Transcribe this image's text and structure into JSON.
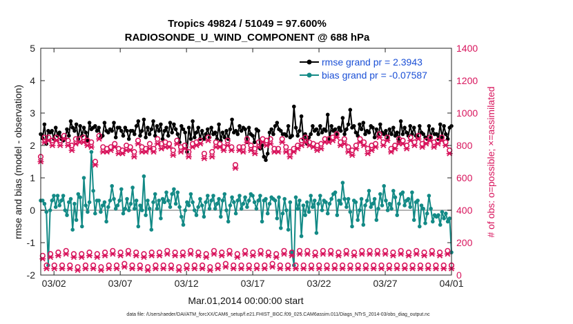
{
  "chart_data": {
    "type": "line",
    "title": "Tropics 49824 / 51049 = 97.600%",
    "subtitle": "RADIOSONDE_U_WIND_COMPONENT @ 688 hPa",
    "xlabel": "Mar.01,2014 00:00:00 start",
    "ylabel": "rmse and bias (model - observation)",
    "ylabel_right": "# of obs: o=possible; ×=assimilated",
    "xlim": [
      0,
      31
    ],
    "ylim": [
      -2,
      5
    ],
    "ylim_right": [
      0,
      1400
    ],
    "x_ticks": [
      {
        "x": 1,
        "label": "03/02"
      },
      {
        "x": 6,
        "label": "03/07"
      },
      {
        "x": 11,
        "label": "03/12"
      },
      {
        "x": 16,
        "label": "03/17"
      },
      {
        "x": 21,
        "label": "03/22"
      },
      {
        "x": 26,
        "label": "03/27"
      },
      {
        "x": 31,
        "label": "04/01"
      }
    ],
    "y_ticks": [
      "-2",
      "-1",
      "0",
      "1",
      "2",
      "3",
      "4",
      "5"
    ],
    "y_ticks_right": [
      "0",
      "200",
      "400",
      "600",
      "800",
      "1000",
      "1200",
      "1400"
    ],
    "legend": [
      {
        "name": "rmse grand pr = 2.3943",
        "color": "#000000"
      },
      {
        "name": "bias grand pr = -0.07587",
        "color": "#138a86"
      }
    ],
    "footnote": "data file: /Users/raeder/DAI/ATM_forcXX/CAM6_setup/f.e21.FHIST_BGC.f09_025.CAM6assim.011/Diags_NTrS_2014-03/obs_diag_output.nc",
    "series": [
      {
        "name": "rmse",
        "axis": "left",
        "color": "#000000",
        "values": [
          2.35,
          2.22,
          2.65,
          2.05,
          2.45,
          2.4,
          2.45,
          2.2,
          2.55,
          2.3,
          2.4,
          2.2,
          2.15,
          2.2,
          2.5,
          2.3,
          2.75,
          2.55,
          2.45,
          2.65,
          2.2,
          2.6,
          2.3,
          2.55,
          2.4,
          2.15,
          2.7,
          2.5,
          2.55,
          2.6,
          2.45,
          2.55,
          2.25,
          2.3,
          2.7,
          2.45,
          2.4,
          2.5,
          2.45,
          2.7,
          2.25,
          2.55,
          2.55,
          2.45,
          2.3,
          2.55,
          2.45,
          2.2,
          2.45,
          2.45,
          2.35,
          2.6,
          2.75,
          2.3,
          2.45,
          2.8,
          2.25,
          2.55,
          2.35,
          2.5,
          2.75,
          2.3,
          2.6,
          2.45,
          2.65,
          2.2,
          2.45,
          2.55,
          2.3,
          2.7,
          2.4,
          2.65,
          2.5,
          2.35,
          2.1,
          2.6,
          2.5,
          2.4,
          1.8,
          2.55,
          2.2,
          2.75,
          2.25,
          2.4,
          2.55,
          2.2,
          2.45,
          2.2,
          2.35,
          2.5,
          2.25,
          2.55,
          2.35,
          2.4,
          2.2,
          2.65,
          2.15,
          2.4,
          2.25,
          2.45,
          2.2,
          2.5,
          2.8,
          2.4,
          2.45,
          2.35,
          2.6,
          2.45,
          2.55,
          2.5,
          2.1,
          2.55,
          2.35,
          2.3,
          2.1,
          2.5,
          2.45,
          1.9,
          2.0,
          1.65,
          1.55,
          1.75,
          2.4,
          2.5,
          2.35,
          2.6,
          2.7,
          2.5,
          2.45,
          2.35,
          2.35,
          2.3,
          2.6,
          2.25,
          2.3,
          3.2,
          2.55,
          2.3,
          2.45,
          2.9,
          2.2,
          2.35,
          2.05,
          2.25,
          2.35,
          2.6,
          2.45,
          2.5,
          2.35,
          2.6,
          2.4,
          2.5,
          2.45,
          2.95,
          2.2,
          2.6,
          2.45,
          2.5,
          2.35,
          2.55,
          2.45,
          2.85,
          2.35,
          2.5,
          2.65,
          3.1,
          2.55,
          2.6,
          2.4,
          2.3,
          2.65,
          2.5,
          2.7,
          2.35,
          2.45,
          2.4,
          2.6,
          2.55,
          2.25,
          2.5,
          2.3,
          2.65,
          2.4,
          2.35,
          2.45,
          2.2,
          2.5,
          2.35,
          2.55,
          2.3,
          2.4,
          2.15,
          2.75,
          2.35,
          2.55,
          2.4,
          2.3,
          2.6,
          2.35,
          2.55,
          2.3,
          2.25,
          2.6,
          2.4,
          2.35,
          2.25,
          2.2,
          2.6,
          2.25,
          2.5,
          2.35,
          2.35,
          2.2,
          2.65,
          2.25,
          2.6,
          2.35,
          2.2,
          2.55,
          2.6
        ]
      },
      {
        "name": "bias",
        "axis": "left",
        "color": "#138a86",
        "values": [
          0.3,
          0.3,
          0.2,
          -0.05,
          -1.7,
          0.0,
          0.3,
          0.45,
          0.1,
          0.45,
          0.15,
          0.3,
          0.45,
          0.0,
          -0.15,
          0.25,
          0.35,
          -0.6,
          0.2,
          -0.3,
          0.5,
          0.4,
          -0.5,
          1.0,
          0.15,
          -0.05,
          0.25,
          1.8,
          0.6,
          -0.1,
          0.3,
          0.3,
          -0.05,
          0.15,
          0.25,
          -0.35,
          0.1,
          0.3,
          0.75,
          0.35,
          0.05,
          0.15,
          0.3,
          0.65,
          -0.1,
          0.05,
          0.35,
          0.0,
          0.2,
          0.7,
          0.05,
          0.3,
          -0.5,
          0.15,
          0.0,
          1.05,
          -0.15,
          0.3,
          0.05,
          -0.6,
          0.25,
          0.5,
          0.05,
          0.3,
          -0.25,
          0.35,
          0.25,
          0.55,
          0.3,
          0.1,
          0.5,
          0.65,
          0.2,
          0.55,
          0.1,
          -0.2,
          -0.45,
          0.0,
          0.25,
          0.15,
          0.5,
          0.25,
          0.0,
          -0.15,
          0.1,
          0.35,
          0.15,
          -0.2,
          0.25,
          0.45,
          0.05,
          0.3,
          0.45,
          0.05,
          0.2,
          0.35,
          -0.2,
          0.3,
          0.5,
          0.0,
          -0.35,
          0.15,
          0.4,
          0.25,
          -0.1,
          0.3,
          0.45,
          0.05,
          0.2,
          0.4,
          0.1,
          0.3,
          0.5,
          0.45,
          0.25,
          0.05,
          0.3,
          0.45,
          -0.35,
          0.3,
          0.35,
          -0.1,
          0.2,
          0.4,
          0.35,
          0.3,
          -0.25,
          0.4,
          -0.55,
          -0.1,
          0.35,
          0.0,
          -0.6,
          0.25,
          -1.3,
          -1.7,
          0.4,
          0.05,
          0.3,
          -0.8,
          0.15,
          -0.15,
          0.25,
          -0.05,
          0.45,
          0.1,
          0.3,
          -0.7,
          0.2,
          0.45,
          0.0,
          0.3,
          0.25,
          -0.1,
          0.2,
          0.35,
          0.5,
          0.55,
          -0.15,
          0.3,
          0.2,
          0.85,
          0.35,
          0.1,
          0.35,
          -0.05,
          -0.5,
          0.3,
          0.25,
          -0.3,
          0.0,
          0.35,
          -0.45,
          0.15,
          0.3,
          0.6,
          0.1,
          0.2,
          0.35,
          -0.3,
          0.05,
          0.5,
          0.15,
          0.75,
          0.3,
          0.0,
          0.2,
          0.05,
          0.6,
          0.4,
          -0.15,
          0.2,
          0.5,
          0.55,
          0.15,
          0.3,
          0.35,
          0.1,
          0.55,
          -0.3,
          0.25,
          0.3,
          -0.5,
          0.15,
          0.05,
          -0.4,
          -0.1,
          0.45,
          0.05,
          -0.35,
          -0.15,
          -0.2,
          -0.15,
          -0.45,
          -0.05,
          -0.25,
          -0.1,
          -0.35,
          -0.25,
          -1.3
        ]
      },
      {
        "name": "obs possible (o)",
        "axis": "right",
        "color": "#d8145c",
        "values": [
          730,
          120,
          850,
          60,
          850,
          130,
          830,
          60,
          850,
          140,
          830,
          60,
          860,
          150,
          830,
          60,
          800,
          130,
          840,
          50,
          840,
          130,
          850,
          60,
          830,
          140,
          820,
          60,
          700,
          130,
          860,
          50,
          790,
          140,
          780,
          60,
          790,
          150,
          810,
          60,
          780,
          140,
          770,
          70,
          800,
          150,
          790,
          60,
          760,
          140,
          830,
          60,
          790,
          130,
          780,
          50,
          810,
          140,
          780,
          60,
          840,
          140,
          810,
          60,
          820,
          150,
          810,
          60,
          770,
          140,
          830,
          50,
          790,
          140,
          800,
          60,
          760,
          150,
          810,
          60,
          820,
          140,
          830,
          60,
          750,
          130,
          850,
          50,
          760,
          150,
          820,
          60,
          810,
          140,
          790,
          70,
          830,
          150,
          790,
          60,
          680,
          130,
          790,
          60,
          790,
          150,
          840,
          60,
          800,
          140,
          780,
          60,
          820,
          150,
          840,
          60,
          830,
          140,
          840,
          70,
          780,
          130,
          780,
          60,
          840,
          150,
          790,
          60,
          760,
          140,
          780,
          60,
          800,
          150,
          830,
          60,
          850,
          150,
          820,
          60,
          810,
          140,
          800,
          60,
          810,
          150,
          840,
          60,
          840,
          150,
          850,
          60,
          870,
          140,
          820,
          60,
          840,
          150,
          790,
          60,
          770,
          140,
          800,
          60,
          840,
          150,
          820,
          60,
          780,
          150,
          800,
          60,
          810,
          150,
          870,
          60,
          820,
          150,
          850,
          60,
          780,
          140,
          800,
          60,
          840,
          150,
          830,
          60,
          800,
          140,
          850,
          60,
          820,
          150,
          860,
          60,
          810,
          140,
          830,
          60,
          850,
          150,
          820,
          60,
          830,
          140,
          850,
          60,
          820,
          150,
          770,
          60
        ]
      },
      {
        "name": "obs assimilated (×)",
        "axis": "right",
        "color": "#d8145c",
        "values": [
          700,
          100,
          820,
          40,
          830,
          110,
          800,
          40,
          830,
          120,
          800,
          40,
          840,
          130,
          800,
          40,
          770,
          110,
          810,
          30,
          820,
          110,
          820,
          40,
          800,
          120,
          790,
          40,
          680,
          110,
          840,
          30,
          760,
          120,
          760,
          40,
          770,
          130,
          790,
          40,
          750,
          120,
          750,
          50,
          770,
          130,
          770,
          40,
          730,
          120,
          810,
          40,
          760,
          110,
          760,
          30,
          780,
          120,
          760,
          40,
          810,
          120,
          780,
          40,
          790,
          130,
          790,
          40,
          740,
          120,
          810,
          30,
          760,
          120,
          780,
          40,
          730,
          130,
          790,
          40,
          800,
          120,
          810,
          40,
          720,
          110,
          830,
          30,
          730,
          130,
          790,
          40,
          790,
          120,
          770,
          50,
          800,
          130,
          770,
          40,
          660,
          110,
          770,
          40,
          760,
          130,
          820,
          40,
          770,
          120,
          750,
          40,
          790,
          130,
          820,
          40,
          800,
          120,
          810,
          50,
          760,
          110,
          760,
          40,
          820,
          130,
          760,
          40,
          730,
          120,
          760,
          40,
          780,
          130,
          800,
          40,
          820,
          130,
          800,
          40,
          790,
          120,
          770,
          40,
          780,
          130,
          820,
          40,
          820,
          130,
          830,
          40,
          850,
          120,
          800,
          40,
          810,
          130,
          760,
          40,
          740,
          120,
          780,
          40,
          820,
          130,
          800,
          40,
          750,
          130,
          770,
          40,
          790,
          130,
          850,
          40,
          800,
          130,
          830,
          40,
          760,
          120,
          780,
          40,
          810,
          130,
          810,
          40,
          780,
          120,
          830,
          40,
          800,
          130,
          840,
          40,
          790,
          120,
          810,
          40,
          830,
          130,
          790,
          40,
          810,
          120,
          830,
          40,
          800,
          130,
          750,
          40
        ]
      }
    ]
  }
}
